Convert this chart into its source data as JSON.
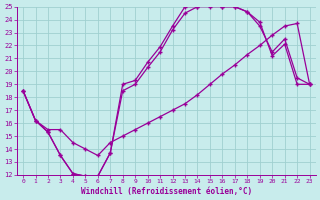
{
  "xlabel": "Windchill (Refroidissement éolien,°C)",
  "bg_color": "#c8ecec",
  "grid_color": "#a0d0d0",
  "line_color": "#990099",
  "xlim": [
    -0.5,
    23.5
  ],
  "ylim": [
    12,
    25
  ],
  "xticks": [
    0,
    1,
    2,
    3,
    4,
    5,
    6,
    7,
    8,
    9,
    10,
    11,
    12,
    13,
    14,
    15,
    16,
    17,
    18,
    19,
    20,
    21,
    22,
    23
  ],
  "yticks": [
    12,
    13,
    14,
    15,
    16,
    17,
    18,
    19,
    20,
    21,
    22,
    23,
    24,
    25
  ],
  "curve1_x": [
    0,
    1,
    2,
    3,
    4,
    5,
    6,
    7,
    8,
    9,
    10,
    11,
    12,
    13,
    14,
    15,
    16,
    17,
    18,
    19,
    20,
    21,
    22,
    23
  ],
  "curve1_y": [
    18.5,
    16.2,
    15.3,
    13.5,
    12.1,
    11.9,
    11.9,
    13.7,
    19.0,
    19.3,
    20.7,
    21.9,
    23.5,
    25.0,
    25.0,
    25.1,
    25.0,
    25.0,
    24.6,
    23.8,
    21.2,
    22.1,
    19.0,
    19.0
  ],
  "curve2_x": [
    0,
    1,
    2,
    3,
    4,
    5,
    6,
    7,
    8,
    9,
    10,
    11,
    12,
    13,
    14,
    15,
    16,
    17,
    18,
    19,
    20,
    21,
    22,
    23
  ],
  "curve2_y": [
    18.5,
    16.2,
    15.3,
    13.5,
    12.1,
    11.9,
    11.9,
    13.7,
    18.5,
    19.0,
    20.3,
    21.5,
    23.2,
    24.5,
    25.0,
    25.0,
    25.0,
    25.0,
    24.6,
    23.5,
    21.5,
    22.5,
    19.5,
    19.0
  ],
  "curve3_x": [
    0,
    1,
    2,
    3,
    4,
    5,
    6,
    7,
    8,
    9,
    10,
    11,
    12,
    13,
    14,
    15,
    16,
    17,
    18,
    19,
    20,
    21,
    22,
    23
  ],
  "curve3_y": [
    18.5,
    16.2,
    15.5,
    15.5,
    14.5,
    14.0,
    13.5,
    14.5,
    15.0,
    15.5,
    16.0,
    16.5,
    17.0,
    17.5,
    18.2,
    19.0,
    19.8,
    20.5,
    21.3,
    22.0,
    22.8,
    23.5,
    23.7,
    19.0
  ]
}
